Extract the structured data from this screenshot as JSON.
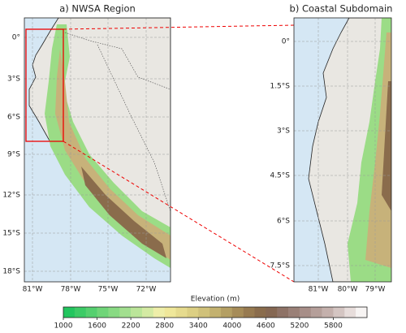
{
  "panels": [
    {
      "title": "a) NWSA Region",
      "yticks": [
        "0°",
        "3°S",
        "6°S",
        "9°S",
        "12°S",
        "15°S",
        "18°S"
      ],
      "xticks": [
        "81°W",
        "78°W",
        "75°W",
        "72°W"
      ]
    },
    {
      "title": "b) Coastal Subdomain",
      "yticks": [
        "0°",
        "1.5°S",
        "3°S",
        "4.5°S",
        "6°S",
        "7.5°S"
      ],
      "xticks": [
        "81°W",
        "80°W",
        "79°W"
      ]
    }
  ],
  "colorbar": {
    "label": "Elevation (m)",
    "lim": [
      1000,
      6400
    ],
    "ticks": [
      1000,
      1600,
      2200,
      2800,
      3400,
      4000,
      4600,
      5200,
      5800
    ],
    "colors": [
      "#22c55e",
      "#3ccb66",
      "#55d06f",
      "#6fd578",
      "#88da83",
      "#a2df8f",
      "#bbe599",
      "#d4eaa3",
      "#eeeea9",
      "#efe79a",
      "#e6db8e",
      "#dccf83",
      "#d0c17a",
      "#c3b16f",
      "#b49f63",
      "#a68c58",
      "#977a50",
      "#8a6c4c",
      "#856752",
      "#8e7266",
      "#9a8077",
      "#a78e88",
      "#b59f9a",
      "#c4b0ac",
      "#d4c5c2",
      "#e7dddb",
      "#f7f4f3"
    ]
  }
}
